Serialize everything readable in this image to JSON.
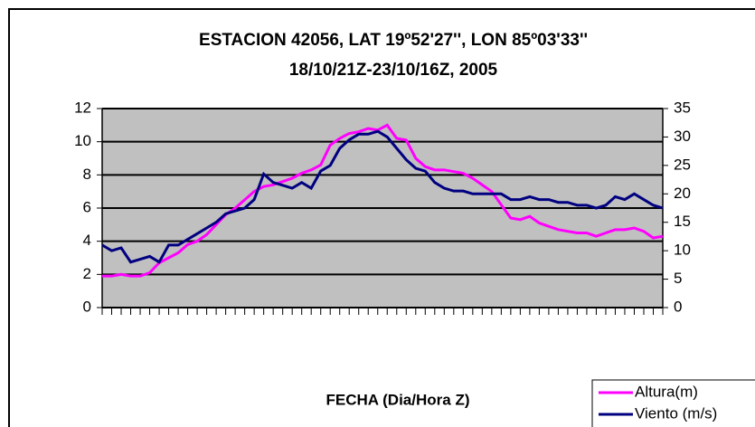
{
  "chart_data": {
    "type": "line",
    "title": [
      "ESTACION 42056, LAT 19º52'27'', LON 85º03'33''",
      "18/10/21Z-23/10/16Z, 2005"
    ],
    "x_label": "FECHA (Dia/Hora Z)",
    "categories": [
      null,
      null,
      null,
      null,
      null,
      null,
      null,
      null,
      null,
      null,
      null,
      null,
      null,
      null,
      null,
      null,
      null,
      null,
      null,
      null,
      null,
      null,
      null,
      null,
      null,
      null,
      null,
      null,
      null,
      null,
      null,
      null,
      null,
      null,
      null,
      null,
      null,
      null,
      null,
      null,
      null,
      null,
      null,
      null,
      null,
      null,
      null,
      null,
      null,
      null,
      null,
      null,
      null,
      null,
      null,
      null,
      null,
      null,
      null,
      null
    ],
    "series": [
      {
        "name": "Altura(m)",
        "color": "#ff00ff",
        "axis": "y",
        "values": [
          1.9,
          1.9,
          2,
          1.9,
          1.9,
          2.1,
          2.7,
          3,
          3.3,
          3.8,
          4,
          4.4,
          5,
          5.6,
          6,
          6.5,
          7,
          7.3,
          7.4,
          7.6,
          7.8,
          8.1,
          8.3,
          8.6,
          9.8,
          10.2,
          10.5,
          10.6,
          10.8,
          10.7,
          11,
          10.2,
          10.1,
          9,
          8.5,
          8.3,
          8.3,
          8.2,
          8.1,
          7.8,
          7.4,
          7,
          6.2,
          5.4,
          5.3,
          5.5,
          5.1,
          4.9,
          4.7,
          4.6,
          4.5,
          4.5,
          4.3,
          4.5,
          4.7,
          4.7,
          4.8,
          4.6,
          4.2,
          4.3
        ]
      },
      {
        "name": "Viento (m/s)",
        "color": "#000080",
        "axis": "y2",
        "values": [
          11,
          10,
          10.5,
          8,
          8.5,
          9,
          8,
          11,
          11,
          12,
          13,
          14,
          15,
          16.5,
          17,
          17.5,
          19,
          23.5,
          22,
          21.5,
          21,
          22,
          21,
          24,
          25,
          28,
          29.5,
          30.5,
          30.5,
          31,
          30,
          28,
          26,
          24.5,
          24,
          22,
          21,
          20.5,
          20.5,
          20,
          20,
          20,
          20,
          19,
          19,
          19.5,
          19,
          19,
          18.5,
          18.5,
          18,
          18,
          17.5,
          18,
          19.5,
          19,
          20,
          19,
          18,
          17.5
        ]
      }
    ],
    "ylim": [
      0,
      12
    ],
    "yticks": [
      0,
      2,
      4,
      6,
      8,
      10,
      12
    ],
    "y2lim": [
      0,
      35
    ],
    "y2ticks": [
      0,
      5,
      10,
      15,
      20,
      25,
      30,
      35
    ],
    "grid": true,
    "legend": "bottom-right"
  }
}
